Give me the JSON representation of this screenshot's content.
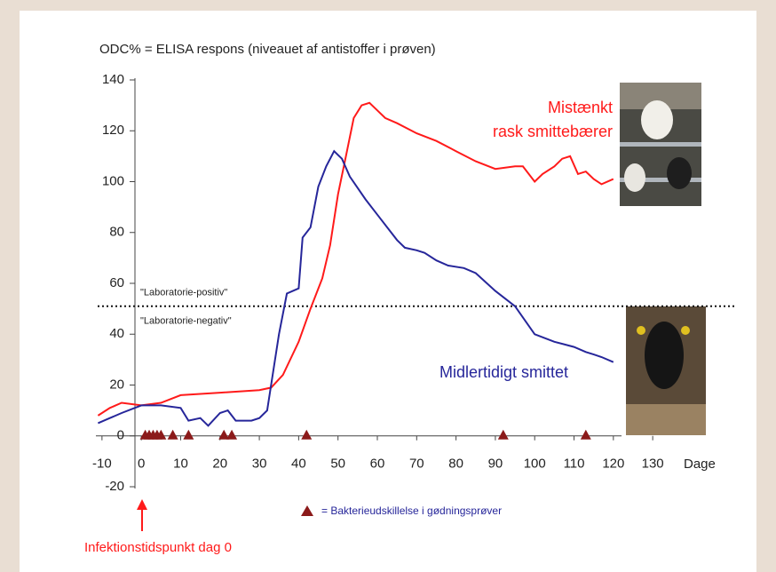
{
  "chart_data": {
    "type": "line",
    "title": "ODC% = ELISA respons (niveauet af antistoffer i prøven)",
    "x_axis_label": "Dage",
    "xlim": [
      -12,
      132
    ],
    "xticks": [
      -10,
      0,
      10,
      20,
      30,
      40,
      50,
      60,
      70,
      80,
      90,
      100,
      110,
      120,
      130
    ],
    "ylim": [
      -20,
      140
    ],
    "yticks": [
      -20,
      0,
      20,
      40,
      60,
      80,
      100,
      120,
      140
    ],
    "series": [
      {
        "name": "Mistænkt\nrask smittebærer",
        "color": "#ff1a1a",
        "x": [
          -11,
          -8,
          -5,
          0,
          5,
          10,
          20,
          30,
          33,
          36,
          40,
          43,
          46,
          48,
          50,
          52,
          54,
          56,
          58,
          60,
          62,
          65,
          70,
          75,
          80,
          85,
          90,
          95,
          97,
          100,
          102,
          105,
          107,
          109,
          111,
          113,
          115,
          117,
          120
        ],
        "values": [
          8,
          11,
          13,
          12,
          13,
          16,
          17,
          18,
          19,
          24,
          37,
          50,
          62,
          75,
          95,
          110,
          125,
          130,
          131,
          128,
          125,
          123,
          119,
          116,
          112,
          108,
          105,
          106,
          106,
          100,
          103,
          106,
          109,
          110,
          103,
          104,
          101,
          99,
          101
        ]
      },
      {
        "name": "Midlertidigt smittet",
        "color": "#26269a",
        "x": [
          -11,
          -8,
          -5,
          0,
          5,
          10,
          12,
          15,
          17,
          20,
          22,
          24,
          28,
          30,
          32,
          35,
          37,
          40,
          41,
          43,
          45,
          47,
          49,
          51,
          53,
          57,
          60,
          65,
          67,
          70,
          72,
          75,
          78,
          82,
          85,
          90,
          95,
          100,
          105,
          110,
          113,
          115,
          117,
          120
        ],
        "values": [
          5,
          7,
          9,
          12,
          12,
          11,
          6,
          7,
          4,
          9,
          10,
          6,
          6,
          7,
          10,
          40,
          56,
          58,
          78,
          82,
          98,
          106,
          112,
          109,
          102,
          93,
          87,
          77,
          74,
          73,
          72,
          69,
          67,
          66,
          64,
          57,
          51,
          40,
          37,
          35,
          33,
          32,
          31,
          29
        ]
      }
    ],
    "threshold": {
      "value": 51,
      "labels": [
        "\"Laboratorie-positiv\"",
        "\"Laboratorie-negativ\""
      ]
    },
    "markers": {
      "name": "= Bakterieudskillelse i gødningsprøver",
      "color": "#8b1a1a",
      "x": [
        1,
        2,
        3,
        4,
        5,
        8,
        12,
        21,
        23,
        42,
        92,
        113
      ],
      "values": [
        0,
        0,
        0,
        0,
        0,
        0,
        0,
        0,
        0,
        0,
        0,
        0
      ]
    },
    "annotation": "Infektionstidspunkt dag 0"
  }
}
